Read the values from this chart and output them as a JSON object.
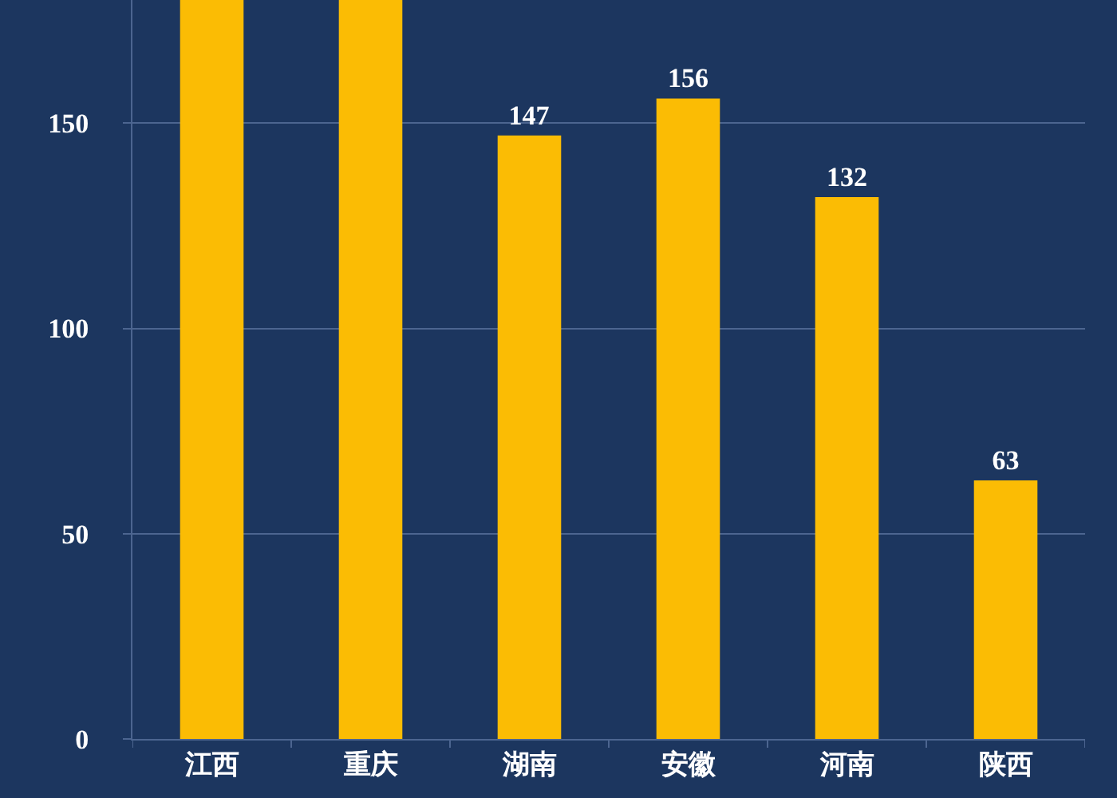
{
  "chart_data": {
    "type": "bar",
    "categories": [
      "江西",
      "重庆",
      "湖南",
      "安徽",
      "河南",
      "陕西"
    ],
    "values": [
      180,
      180,
      147,
      156,
      132,
      63
    ],
    "value_labels": [
      null,
      null,
      "147",
      "156",
      "132",
      "63"
    ],
    "color": "#fbbc04",
    "ylim": [
      0,
      180
    ],
    "yticks": [
      0,
      50,
      100,
      150
    ],
    "grid": "y"
  }
}
